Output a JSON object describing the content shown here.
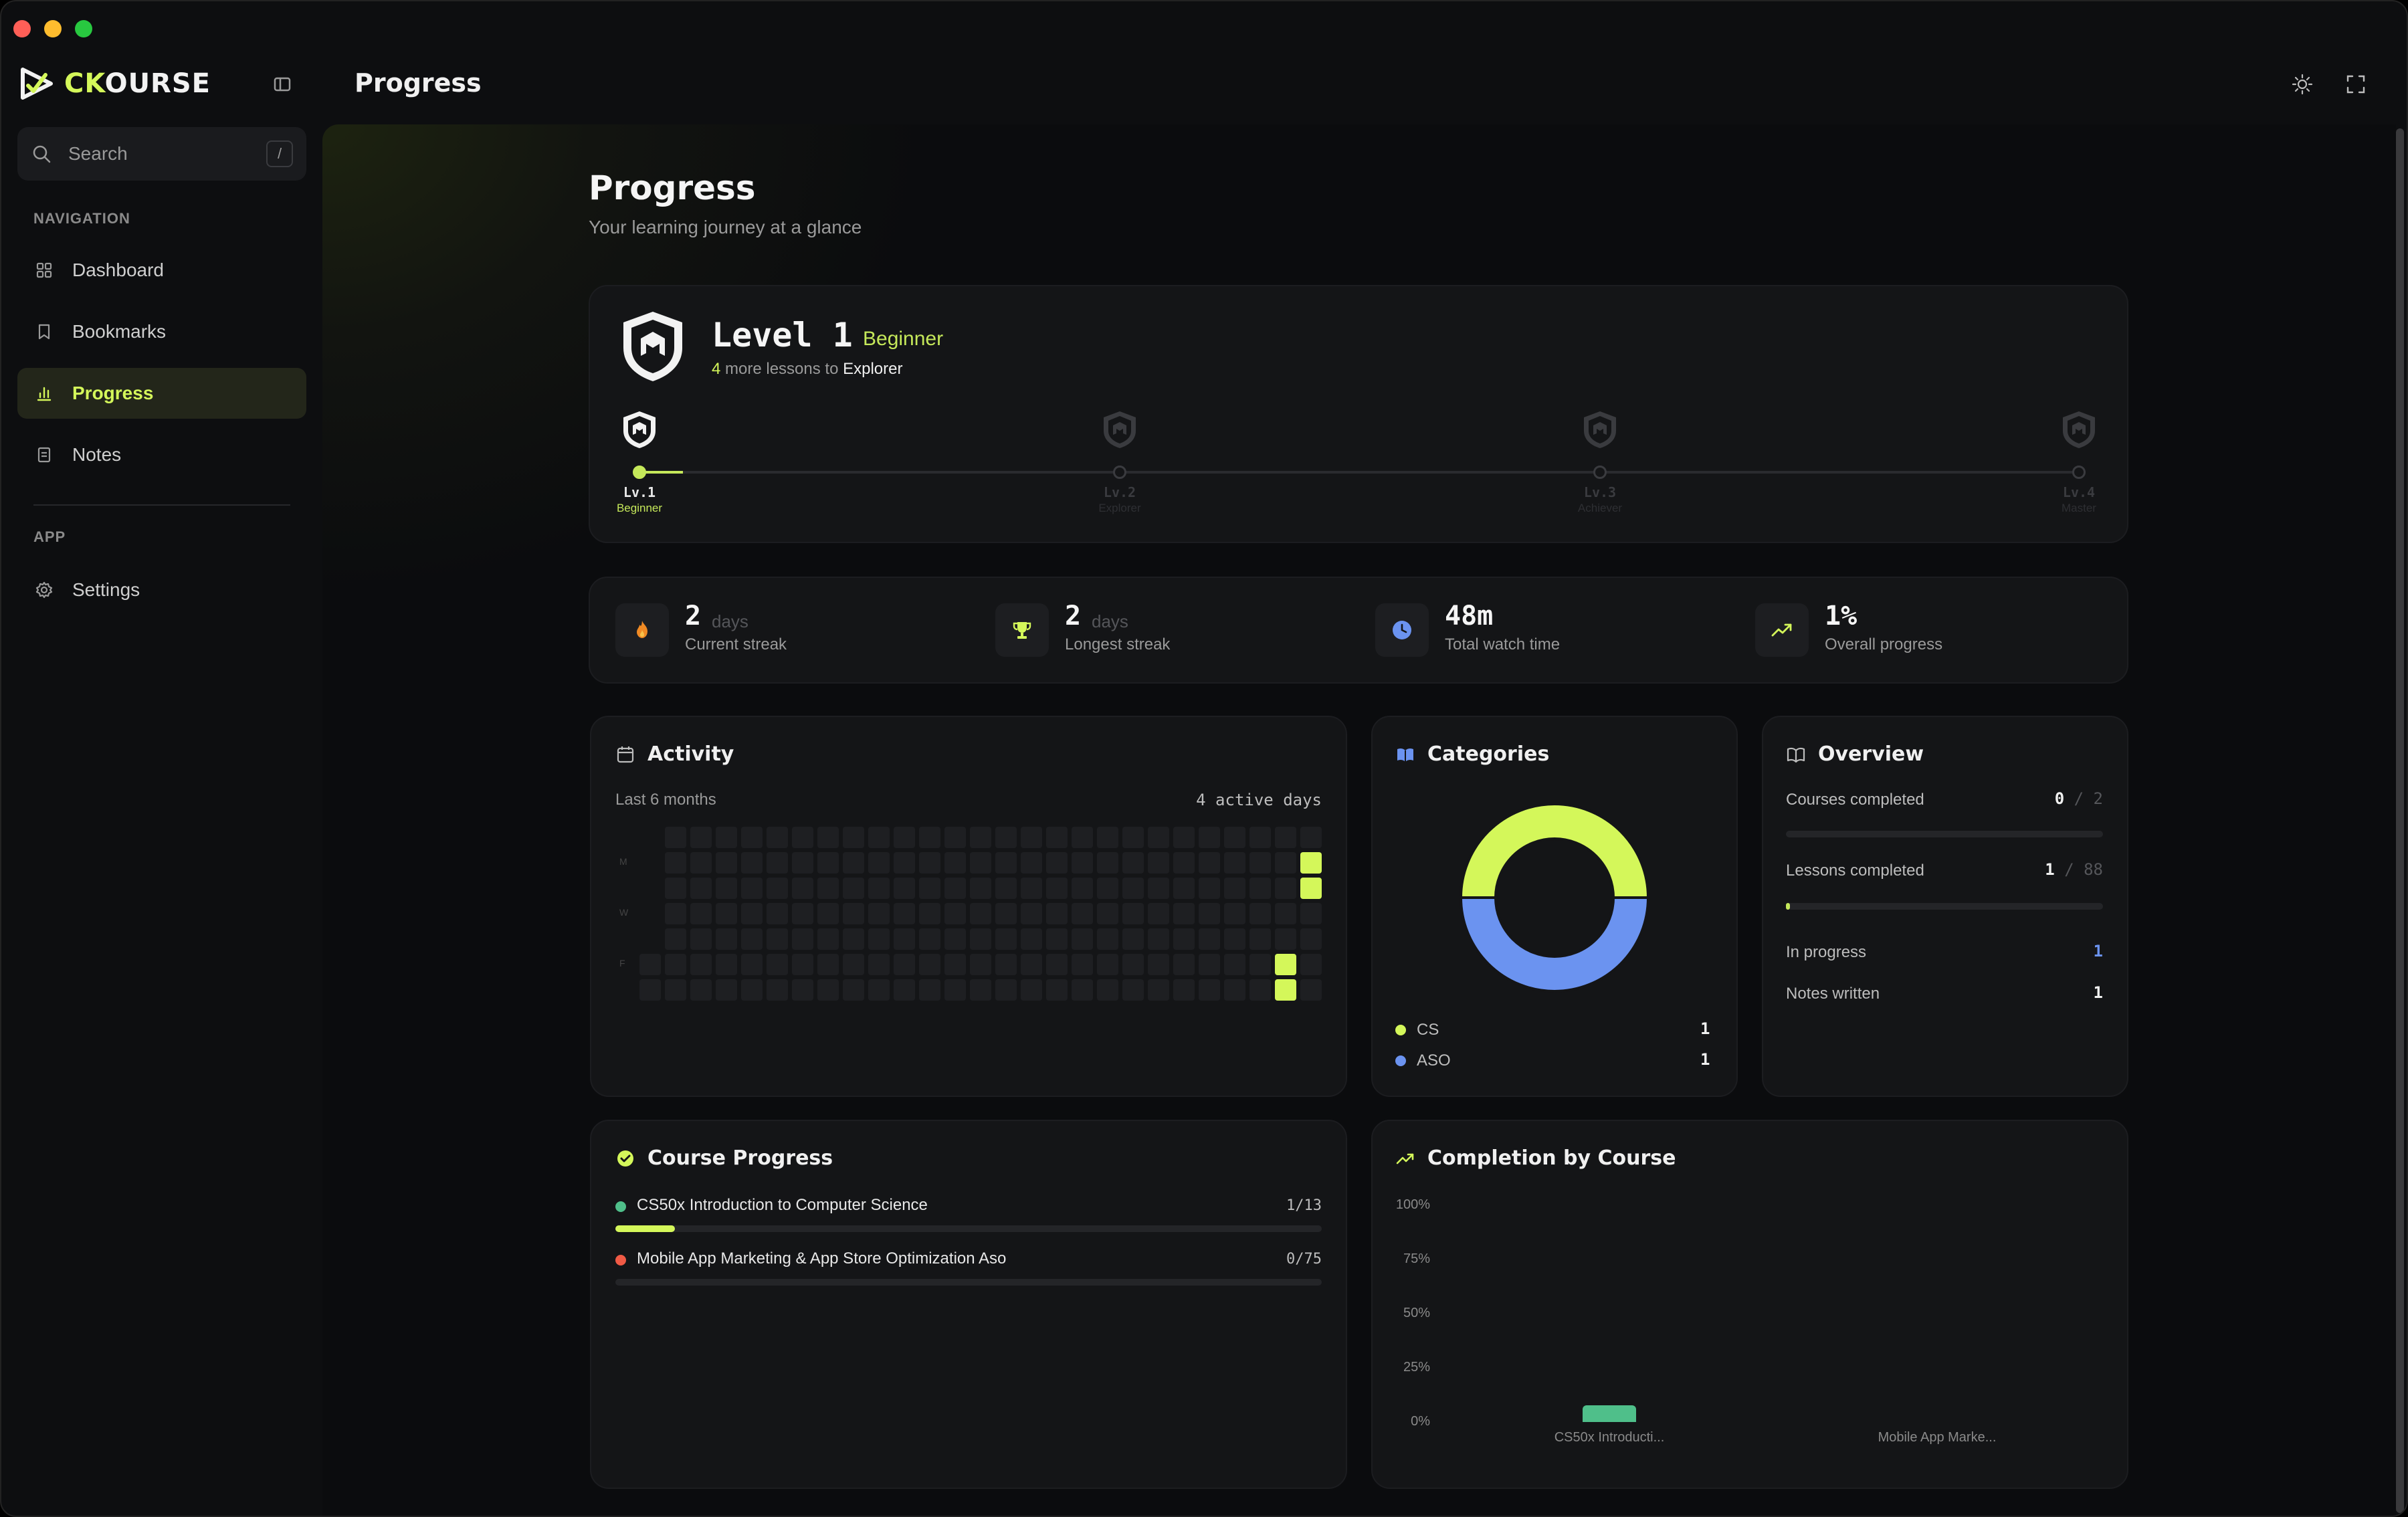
{
  "app": {
    "brand_accent": "CK",
    "brand_rest": "OURSE",
    "page_title": "Progress"
  },
  "sidebar": {
    "search_placeholder": "Search",
    "search_shortcut": "/",
    "nav_section": "NAVIGATION",
    "app_section": "APP",
    "items": [
      {
        "label": "Dashboard",
        "icon": "grid-icon",
        "active": false
      },
      {
        "label": "Bookmarks",
        "icon": "bookmark-icon",
        "active": false
      },
      {
        "label": "Progress",
        "icon": "bar-chart-icon",
        "active": true
      },
      {
        "label": "Notes",
        "icon": "note-icon",
        "active": false
      }
    ],
    "settings_label": "Settings"
  },
  "header": {
    "title": "Progress",
    "subtitle": "Your learning journey at a glance"
  },
  "level": {
    "title": "Level 1",
    "rank": "Beginner",
    "lessons_needed": "4",
    "next_text": "more lessons to",
    "next_rank": "Explorer",
    "progress_fraction": 0.03,
    "milestones": [
      {
        "label": "Lv.1",
        "name": "Beginner",
        "reached": true
      },
      {
        "label": "Lv.2",
        "name": "Explorer",
        "reached": false
      },
      {
        "label": "Lv.3",
        "name": "Achiever",
        "reached": false
      },
      {
        "label": "Lv.4",
        "name": "Master",
        "reached": false
      }
    ]
  },
  "stats": [
    {
      "value": "2",
      "unit": "days",
      "label": "Current streak",
      "icon": "flame-icon"
    },
    {
      "value": "2",
      "unit": "days",
      "label": "Longest streak",
      "icon": "trophy-icon"
    },
    {
      "value": "48m",
      "unit": "",
      "label": "Total watch time",
      "icon": "clock-icon"
    },
    {
      "value": "1%",
      "unit": "",
      "label": "Overall progress",
      "icon": "trending-up-icon"
    }
  ],
  "activity": {
    "title": "Activity",
    "range": "Last 6 months",
    "active_days": "4 active days",
    "day_labels": [
      "M",
      "W",
      "F"
    ]
  },
  "categories": {
    "title": "Categories",
    "items": [
      {
        "name": "CS",
        "count": "1",
        "value": 1,
        "color": "#d4f75a"
      },
      {
        "name": "ASO",
        "count": "1",
        "value": 1,
        "color": "#6b93f0"
      }
    ]
  },
  "overview": {
    "title": "Overview",
    "courses_label": "Courses completed",
    "courses_done": "0",
    "courses_total": "2",
    "courses_fraction": 0,
    "lessons_label": "Lessons completed",
    "lessons_done": "1",
    "lessons_total": "88",
    "lessons_fraction": 0.011,
    "in_progress_label": "In progress",
    "in_progress": "1",
    "notes_label": "Notes written",
    "notes": "1",
    "separator": "/"
  },
  "course_progress": {
    "title": "Course Progress",
    "courses": [
      {
        "name": "CS50x Introduction to Computer Science",
        "count": "1/13",
        "fraction": 0.077,
        "color": "#4fbf8a"
      },
      {
        "name": "Mobile App Marketing & App Store Optimization Aso",
        "count": "0/75",
        "fraction": 0,
        "color": "#f05a45"
      }
    ]
  },
  "chart_data": {
    "type": "bar",
    "title": "Completion by Course",
    "categories": [
      "CS50x Introducti...",
      "Mobile App Marke..."
    ],
    "values": [
      7.7,
      0
    ],
    "ylabel": "",
    "xlabel": "",
    "ylim": [
      0,
      100
    ],
    "yticks": [
      "100%",
      "75%",
      "50%",
      "25%",
      "0%"
    ],
    "color": "#4fbf8a"
  }
}
